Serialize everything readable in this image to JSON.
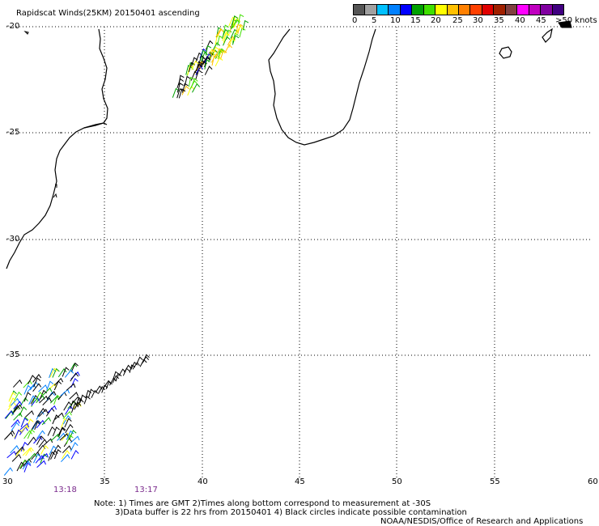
{
  "title": "Rapidscat Winds(25KM) 20150401 ascending",
  "legend": {
    "labels": [
      "0",
      "5",
      "10",
      "15",
      "20",
      "25",
      "30",
      "35",
      "40",
      "45",
      ">50 knots"
    ],
    "colors": [
      "#555555",
      "#a0a0a0",
      "#00c0ff",
      "#0080ff",
      "#0000ff",
      "#00a000",
      "#40e000",
      "#ffff00",
      "#ffc000",
      "#ff8000",
      "#ff4000",
      "#e00000",
      "#a02000",
      "#804040",
      "#ff00ff",
      "#c000c0",
      "#8000a0",
      "#400080"
    ]
  },
  "lat_labels": [
    "-20",
    "-25",
    "-30",
    "-35"
  ],
  "lon_labels": [
    "30",
    "35",
    "40",
    "45",
    "50",
    "55",
    "60"
  ],
  "times": [
    "13:18",
    "13:17"
  ],
  "notes": {
    "line1": "Note: 1) Times are GMT 2)Times along bottom correspond to measurement at -30S",
    "line2": "3)Data buffer is 22 hrs from 20150401 4) Black circles indicate possible contamination",
    "line3": "NOAA/NESDIS/Office of Research and Applications"
  }
}
